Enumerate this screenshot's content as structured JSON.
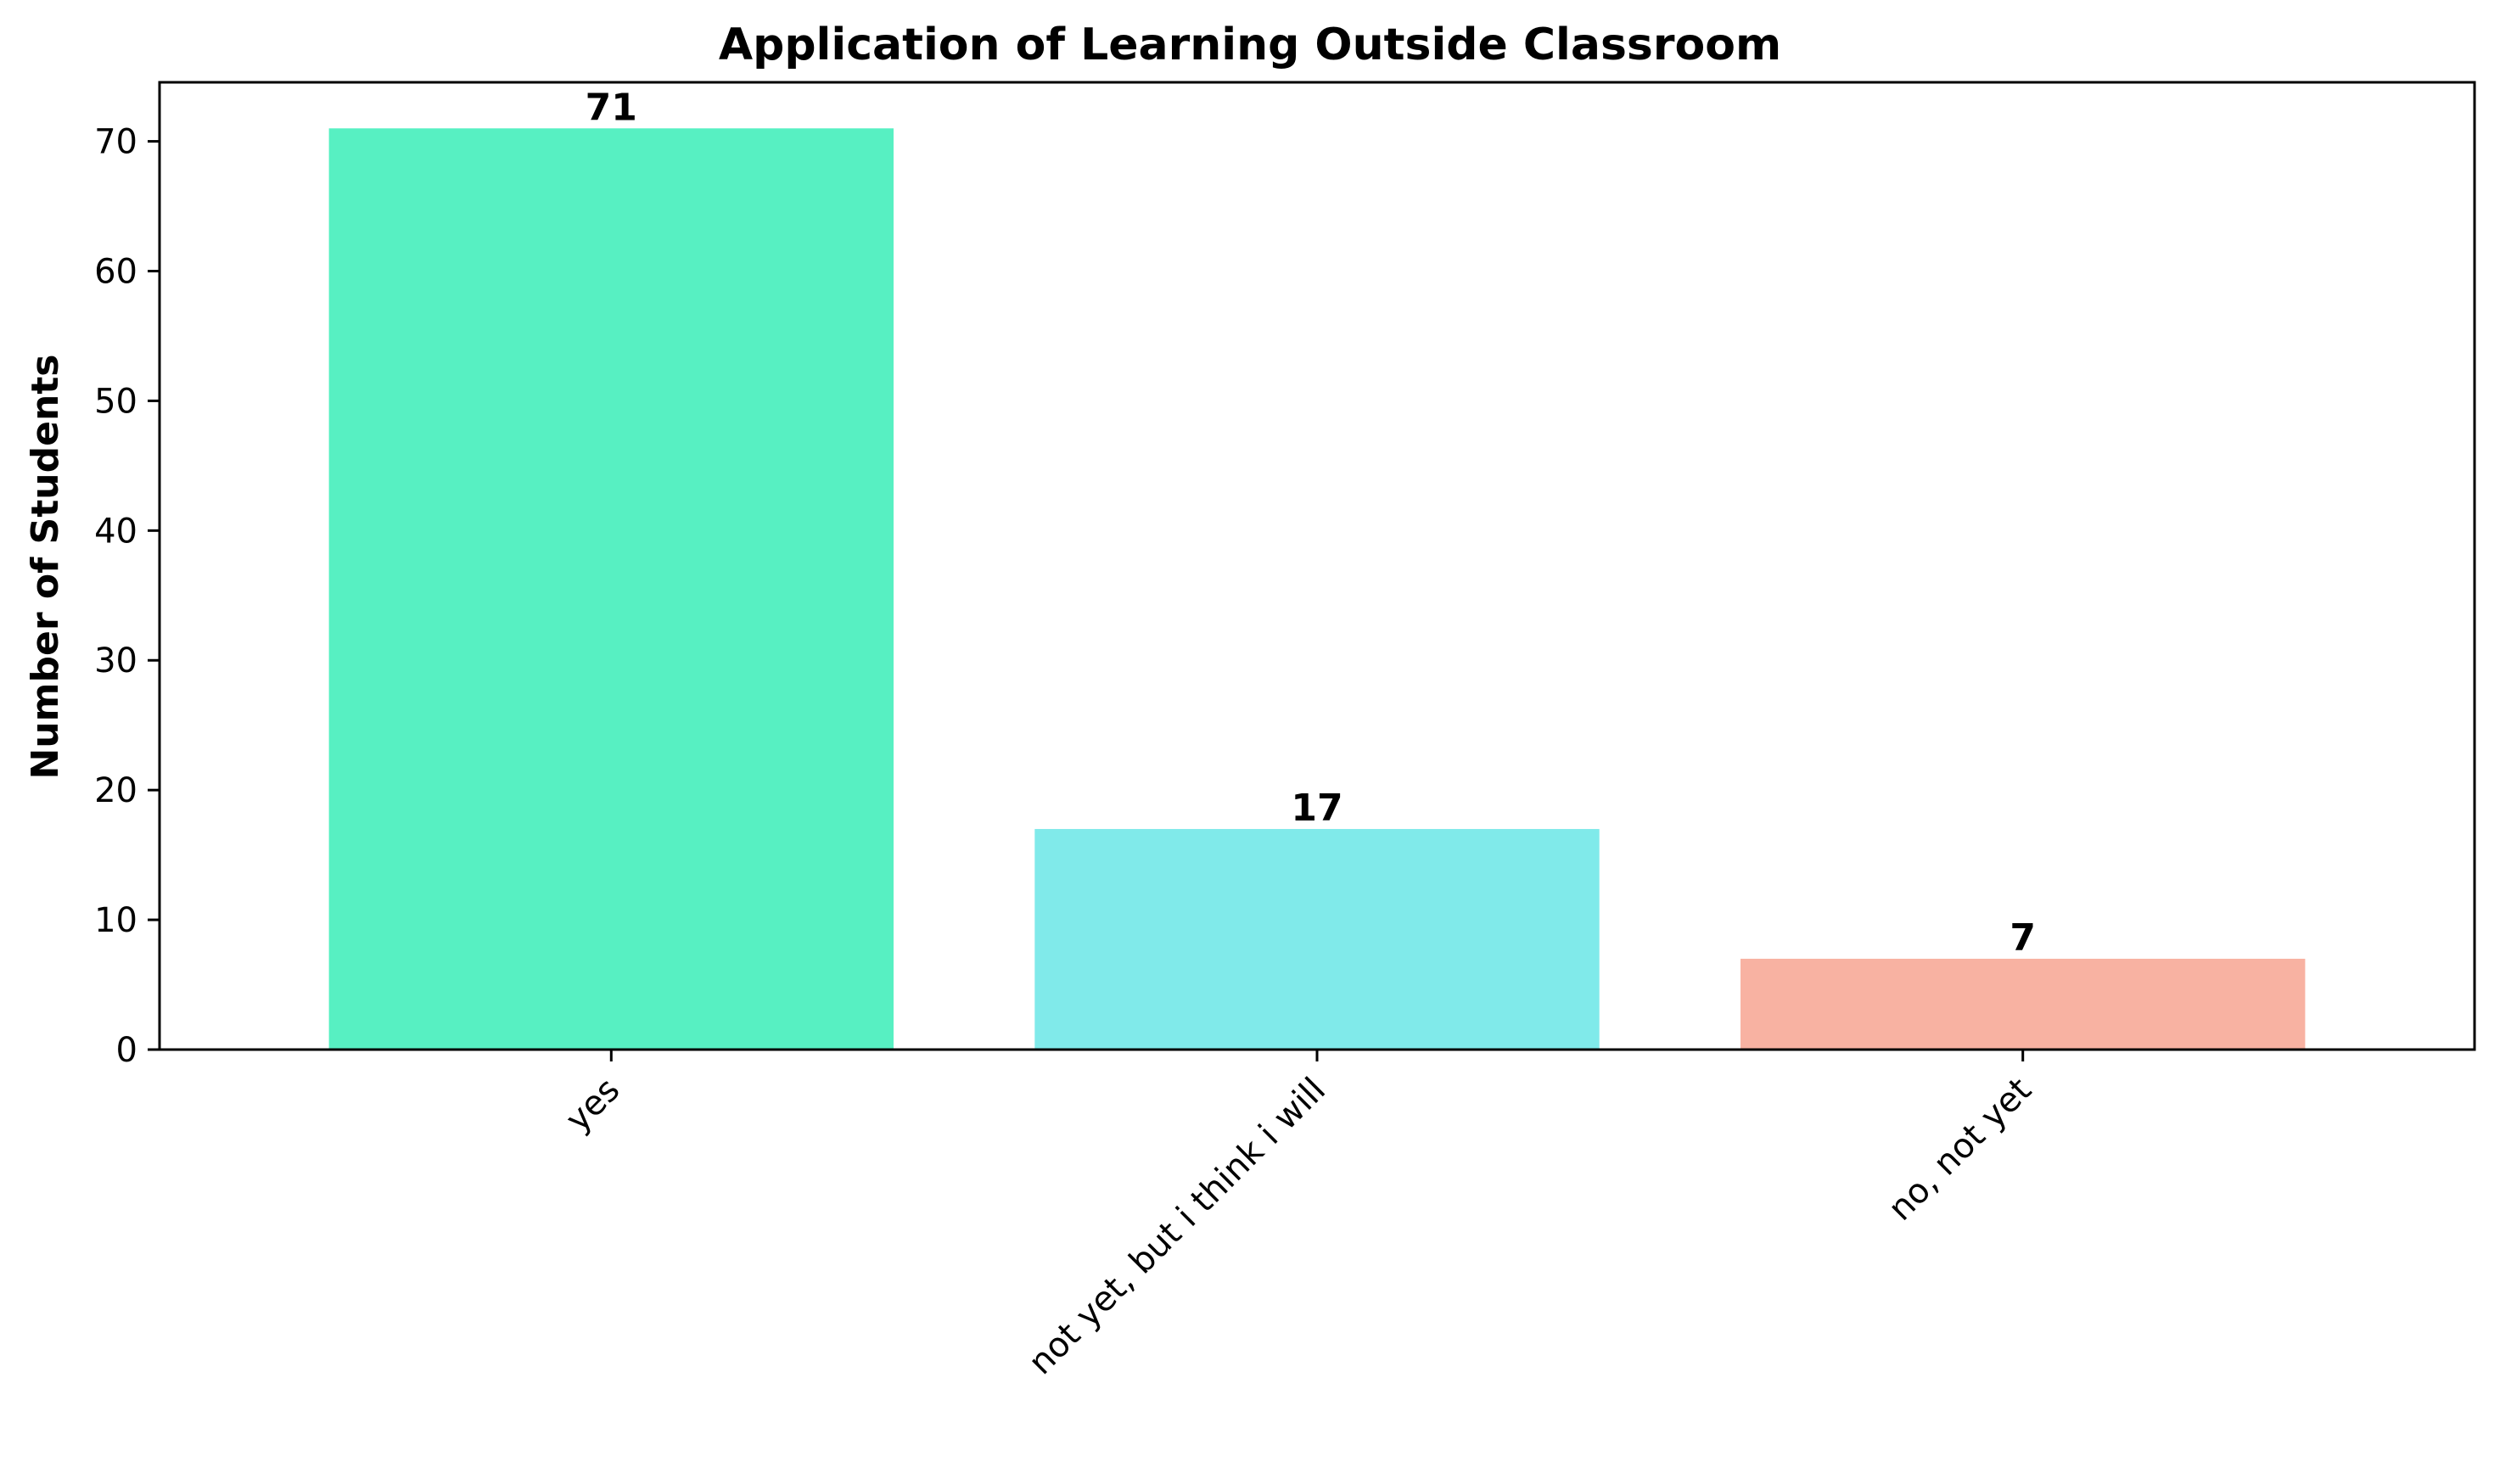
{
  "chart_data": {
    "type": "bar",
    "title": "Application of Learning Outside Classroom",
    "xlabel": "",
    "ylabel": "Number of Students",
    "categories": [
      "yes",
      "not yet, but i think i will",
      "no, not yet"
    ],
    "values": [
      71,
      17,
      7
    ],
    "data_labels": [
      "71",
      "17",
      "7"
    ],
    "colors": [
      "#57f0c2",
      "#80eaea",
      "#f8b2a2"
    ],
    "ylim": [
      0,
      74.55
    ],
    "yticks": [
      0,
      10,
      20,
      30,
      40,
      50,
      60,
      70
    ],
    "grid": false,
    "legend": false
  }
}
